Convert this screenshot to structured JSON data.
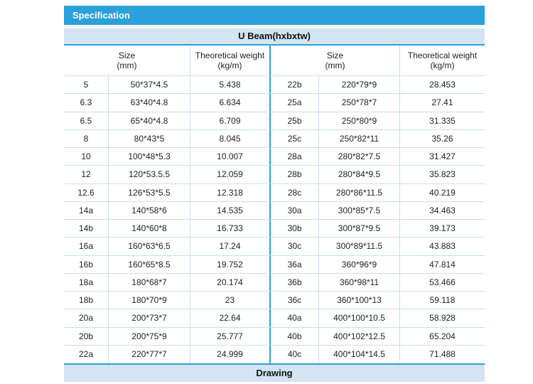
{
  "colors": {
    "accent": "#2BA0DA",
    "band": "#D3E4F3",
    "grid": "#C9DFF0",
    "text": "#222222",
    "spec_bar_text": "#FFFFFF"
  },
  "specification_bar": {
    "label": "Specification"
  },
  "section_bar": {
    "label": "U Beam(hxbxtw)"
  },
  "drawing_bar": {
    "label": "Drawing"
  },
  "table": {
    "headers": {
      "size_title": "Size",
      "size_unit": "(mm)",
      "weight_title": "Theoretical weight",
      "weight_unit": "(kg/m)"
    },
    "left_rows": [
      {
        "model": "5",
        "size": "50*37*4.5",
        "weight": "5.438"
      },
      {
        "model": "6.3",
        "size": "63*40*4.8",
        "weight": "6.634"
      },
      {
        "model": "6.5",
        "size": "65*40*4.8",
        "weight": "6.709"
      },
      {
        "model": "8",
        "size": "80*43*5",
        "weight": "8.045"
      },
      {
        "model": "10",
        "size": "100*48*5.3",
        "weight": "10.007"
      },
      {
        "model": "12",
        "size": "120*53.5.5",
        "weight": "12.059"
      },
      {
        "model": "12.6",
        "size": "126*53*5.5",
        "weight": "12.318"
      },
      {
        "model": "14a",
        "size": "140*58*6",
        "weight": "14.535"
      },
      {
        "model": "14b",
        "size": "140*60*8",
        "weight": "16.733"
      },
      {
        "model": "16a",
        "size": "160*63*6.5",
        "weight": "17.24"
      },
      {
        "model": "16b",
        "size": "160*65*8.5",
        "weight": "19.752"
      },
      {
        "model": "18a",
        "size": "180*68*7",
        "weight": "20.174"
      },
      {
        "model": "18b",
        "size": "180*70*9",
        "weight": "23"
      },
      {
        "model": "20a",
        "size": "200*73*7",
        "weight": "22.64"
      },
      {
        "model": "20b",
        "size": "200*75*9",
        "weight": "25.777"
      },
      {
        "model": "22a",
        "size": "220*77*7",
        "weight": "24.999"
      }
    ],
    "right_rows": [
      {
        "model": "22b",
        "size": "220*79*9",
        "weight": "28.453"
      },
      {
        "model": "25a",
        "size": "250*78*7",
        "weight": "27.41"
      },
      {
        "model": "25b",
        "size": "250*80*9",
        "weight": "31.335"
      },
      {
        "model": "25c",
        "size": "250*82*11",
        "weight": "35.26"
      },
      {
        "model": "28a",
        "size": "280*82*7.5",
        "weight": "31.427"
      },
      {
        "model": "28b",
        "size": "280*84*9.5",
        "weight": "35.823"
      },
      {
        "model": "28c",
        "size": "280*86*11.5",
        "weight": "40.219"
      },
      {
        "model": "30a",
        "size": "300*85*7.5",
        "weight": "34.463"
      },
      {
        "model": "30b",
        "size": "300*87*9.5",
        "weight": "39.173"
      },
      {
        "model": "30c",
        "size": "300*89*11.5",
        "weight": "43.883"
      },
      {
        "model": "36a",
        "size": "360*96*9",
        "weight": "47.814"
      },
      {
        "model": "36b",
        "size": "360*98*11",
        "weight": "53.466"
      },
      {
        "model": "36c",
        "size": "360*100*13",
        "weight": "59.118"
      },
      {
        "model": "40a",
        "size": "400*100*10.5",
        "weight": "58.928"
      },
      {
        "model": "40b",
        "size": "400*102*12.5",
        "weight": "65.204"
      },
      {
        "model": "40c",
        "size": "400*104*14.5",
        "weight": "71.488"
      }
    ]
  }
}
